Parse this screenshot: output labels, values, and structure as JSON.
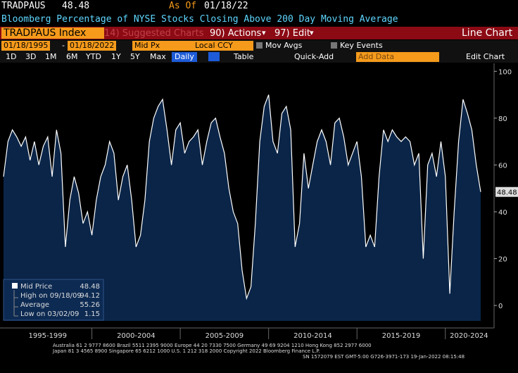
{
  "header": {
    "ticker": "TRADPAUS",
    "last": "48.48",
    "as_of_label": "As Of",
    "as_of_date": "01/18/22",
    "description": "Bloomberg Percentage of NYSE Stocks Closing Above 200 Day Moving Average"
  },
  "toolbar": {
    "security": "TRADPAUS Index",
    "suggested": "14) Suggested Charts",
    "actions": "90) Actions",
    "edit": "97) Edit",
    "chart_type": "Line Chart",
    "start_date": "01/18/1995",
    "date_sep": "-",
    "end_date": "01/18/2022",
    "price_field": "Mid Px",
    "currency": "Local CCY",
    "mov_avgs": "Mov Avgs",
    "key_events": "Key Events",
    "periods": [
      "1D",
      "3D",
      "1M",
      "6M",
      "YTD",
      "1Y",
      "5Y",
      "Max"
    ],
    "frequency": "Daily",
    "table": "Table",
    "quick_add": "Quick-Add",
    "add_data": "Add Data",
    "edit_chart": "Edit Chart"
  },
  "chart_data": {
    "type": "line",
    "color": "#ffffff",
    "fill": "#0a2548",
    "values": [
      55,
      70,
      75,
      72,
      68,
      72,
      62,
      70,
      60,
      68,
      72,
      55,
      75,
      65,
      25,
      45,
      55,
      48,
      35,
      40,
      30,
      45,
      55,
      60,
      70,
      65,
      45,
      55,
      60,
      45,
      25,
      30,
      45,
      70,
      80,
      85,
      88,
      75,
      60,
      75,
      78,
      65,
      70,
      72,
      75,
      60,
      70,
      78,
      80,
      72,
      65,
      50,
      40,
      35,
      15,
      3,
      8,
      35,
      70,
      85,
      90,
      70,
      65,
      82,
      85,
      75,
      25,
      35,
      65,
      50,
      60,
      70,
      75,
      70,
      60,
      78,
      80,
      72,
      60,
      65,
      70,
      55,
      25,
      30,
      25,
      55,
      75,
      70,
      75,
      72,
      70,
      72,
      70,
      60,
      65,
      20,
      60,
      65,
      55,
      70,
      55,
      5,
      40,
      70,
      88,
      82,
      75,
      60,
      48.48
    ],
    "ylim": [
      -6.6,
      103.4
    ],
    "yticks": [
      0,
      20,
      40,
      60,
      80,
      100
    ],
    "x_axis_labels": [
      "1995-1999",
      "2000-2004",
      "2005-2009",
      "2010-2014",
      "2015-2019",
      "2020-2024"
    ],
    "legend": {
      "mid_label": "Mid Price",
      "mid": 48.48,
      "high_label": "High on 09/18/09",
      "high": 94.12,
      "avg_label": "Average",
      "avg": 55.26,
      "low_label": "Low on 03/02/09",
      "low": 1.15
    }
  },
  "footer": {
    "line1": "Australia 61 2 9777 8600 Brazil 5511 2395 9000 Europe 44 20 7330 7500 Germany 49 69 9204 1210 Hong Kong 852 2977 6000",
    "line2": "Japan 81 3 4565 8900 Singapore 65 6212 1000 U.S. 1 212 318 2000 Copyright 2022 Bloomberg Finance L.P.",
    "line3": "SN 1572079 EST GMT-5:00 G726-3971-173 19-Jan-2022 08:15:48"
  }
}
